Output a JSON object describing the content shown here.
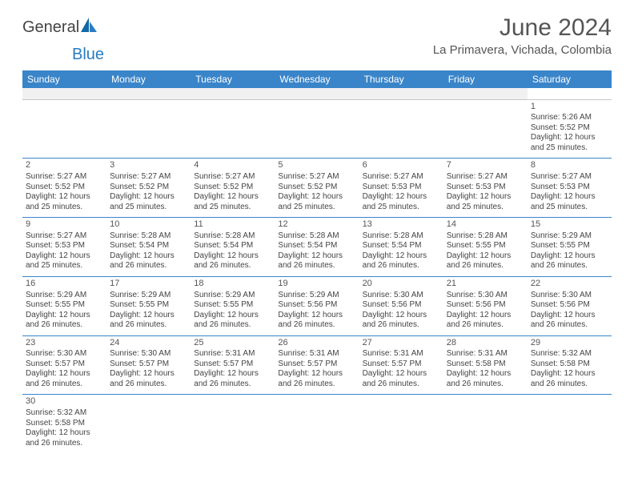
{
  "logo": {
    "text1": "General",
    "text2": "Blue"
  },
  "title": {
    "month": "June 2024",
    "location": "La Primavera, Vichada, Colombia"
  },
  "colors": {
    "header_bg": "#3a85c9",
    "header_text": "#ffffff",
    "cell_border": "#3a85c9",
    "blank_bg": "#f1f1f1",
    "logo_blue": "#2a7bc0"
  },
  "weekdays": [
    "Sunday",
    "Monday",
    "Tuesday",
    "Wednesday",
    "Thursday",
    "Friday",
    "Saturday"
  ],
  "weeks": [
    [
      null,
      null,
      null,
      null,
      null,
      null,
      {
        "d": "1",
        "sr": "Sunrise: 5:26 AM",
        "ss": "Sunset: 5:52 PM",
        "dl1": "Daylight: 12 hours",
        "dl2": "and 25 minutes."
      }
    ],
    [
      {
        "d": "2",
        "sr": "Sunrise: 5:27 AM",
        "ss": "Sunset: 5:52 PM",
        "dl1": "Daylight: 12 hours",
        "dl2": "and 25 minutes."
      },
      {
        "d": "3",
        "sr": "Sunrise: 5:27 AM",
        "ss": "Sunset: 5:52 PM",
        "dl1": "Daylight: 12 hours",
        "dl2": "and 25 minutes."
      },
      {
        "d": "4",
        "sr": "Sunrise: 5:27 AM",
        "ss": "Sunset: 5:52 PM",
        "dl1": "Daylight: 12 hours",
        "dl2": "and 25 minutes."
      },
      {
        "d": "5",
        "sr": "Sunrise: 5:27 AM",
        "ss": "Sunset: 5:52 PM",
        "dl1": "Daylight: 12 hours",
        "dl2": "and 25 minutes."
      },
      {
        "d": "6",
        "sr": "Sunrise: 5:27 AM",
        "ss": "Sunset: 5:53 PM",
        "dl1": "Daylight: 12 hours",
        "dl2": "and 25 minutes."
      },
      {
        "d": "7",
        "sr": "Sunrise: 5:27 AM",
        "ss": "Sunset: 5:53 PM",
        "dl1": "Daylight: 12 hours",
        "dl2": "and 25 minutes."
      },
      {
        "d": "8",
        "sr": "Sunrise: 5:27 AM",
        "ss": "Sunset: 5:53 PM",
        "dl1": "Daylight: 12 hours",
        "dl2": "and 25 minutes."
      }
    ],
    [
      {
        "d": "9",
        "sr": "Sunrise: 5:27 AM",
        "ss": "Sunset: 5:53 PM",
        "dl1": "Daylight: 12 hours",
        "dl2": "and 25 minutes."
      },
      {
        "d": "10",
        "sr": "Sunrise: 5:28 AM",
        "ss": "Sunset: 5:54 PM",
        "dl1": "Daylight: 12 hours",
        "dl2": "and 26 minutes."
      },
      {
        "d": "11",
        "sr": "Sunrise: 5:28 AM",
        "ss": "Sunset: 5:54 PM",
        "dl1": "Daylight: 12 hours",
        "dl2": "and 26 minutes."
      },
      {
        "d": "12",
        "sr": "Sunrise: 5:28 AM",
        "ss": "Sunset: 5:54 PM",
        "dl1": "Daylight: 12 hours",
        "dl2": "and 26 minutes."
      },
      {
        "d": "13",
        "sr": "Sunrise: 5:28 AM",
        "ss": "Sunset: 5:54 PM",
        "dl1": "Daylight: 12 hours",
        "dl2": "and 26 minutes."
      },
      {
        "d": "14",
        "sr": "Sunrise: 5:28 AM",
        "ss": "Sunset: 5:55 PM",
        "dl1": "Daylight: 12 hours",
        "dl2": "and 26 minutes."
      },
      {
        "d": "15",
        "sr": "Sunrise: 5:29 AM",
        "ss": "Sunset: 5:55 PM",
        "dl1": "Daylight: 12 hours",
        "dl2": "and 26 minutes."
      }
    ],
    [
      {
        "d": "16",
        "sr": "Sunrise: 5:29 AM",
        "ss": "Sunset: 5:55 PM",
        "dl1": "Daylight: 12 hours",
        "dl2": "and 26 minutes."
      },
      {
        "d": "17",
        "sr": "Sunrise: 5:29 AM",
        "ss": "Sunset: 5:55 PM",
        "dl1": "Daylight: 12 hours",
        "dl2": "and 26 minutes."
      },
      {
        "d": "18",
        "sr": "Sunrise: 5:29 AM",
        "ss": "Sunset: 5:55 PM",
        "dl1": "Daylight: 12 hours",
        "dl2": "and 26 minutes."
      },
      {
        "d": "19",
        "sr": "Sunrise: 5:29 AM",
        "ss": "Sunset: 5:56 PM",
        "dl1": "Daylight: 12 hours",
        "dl2": "and 26 minutes."
      },
      {
        "d": "20",
        "sr": "Sunrise: 5:30 AM",
        "ss": "Sunset: 5:56 PM",
        "dl1": "Daylight: 12 hours",
        "dl2": "and 26 minutes."
      },
      {
        "d": "21",
        "sr": "Sunrise: 5:30 AM",
        "ss": "Sunset: 5:56 PM",
        "dl1": "Daylight: 12 hours",
        "dl2": "and 26 minutes."
      },
      {
        "d": "22",
        "sr": "Sunrise: 5:30 AM",
        "ss": "Sunset: 5:56 PM",
        "dl1": "Daylight: 12 hours",
        "dl2": "and 26 minutes."
      }
    ],
    [
      {
        "d": "23",
        "sr": "Sunrise: 5:30 AM",
        "ss": "Sunset: 5:57 PM",
        "dl1": "Daylight: 12 hours",
        "dl2": "and 26 minutes."
      },
      {
        "d": "24",
        "sr": "Sunrise: 5:30 AM",
        "ss": "Sunset: 5:57 PM",
        "dl1": "Daylight: 12 hours",
        "dl2": "and 26 minutes."
      },
      {
        "d": "25",
        "sr": "Sunrise: 5:31 AM",
        "ss": "Sunset: 5:57 PM",
        "dl1": "Daylight: 12 hours",
        "dl2": "and 26 minutes."
      },
      {
        "d": "26",
        "sr": "Sunrise: 5:31 AM",
        "ss": "Sunset: 5:57 PM",
        "dl1": "Daylight: 12 hours",
        "dl2": "and 26 minutes."
      },
      {
        "d": "27",
        "sr": "Sunrise: 5:31 AM",
        "ss": "Sunset: 5:57 PM",
        "dl1": "Daylight: 12 hours",
        "dl2": "and 26 minutes."
      },
      {
        "d": "28",
        "sr": "Sunrise: 5:31 AM",
        "ss": "Sunset: 5:58 PM",
        "dl1": "Daylight: 12 hours",
        "dl2": "and 26 minutes."
      },
      {
        "d": "29",
        "sr": "Sunrise: 5:32 AM",
        "ss": "Sunset: 5:58 PM",
        "dl1": "Daylight: 12 hours",
        "dl2": "and 26 minutes."
      }
    ],
    [
      {
        "d": "30",
        "sr": "Sunrise: 5:32 AM",
        "ss": "Sunset: 5:58 PM",
        "dl1": "Daylight: 12 hours",
        "dl2": "and 26 minutes."
      },
      null,
      null,
      null,
      null,
      null,
      null
    ]
  ]
}
